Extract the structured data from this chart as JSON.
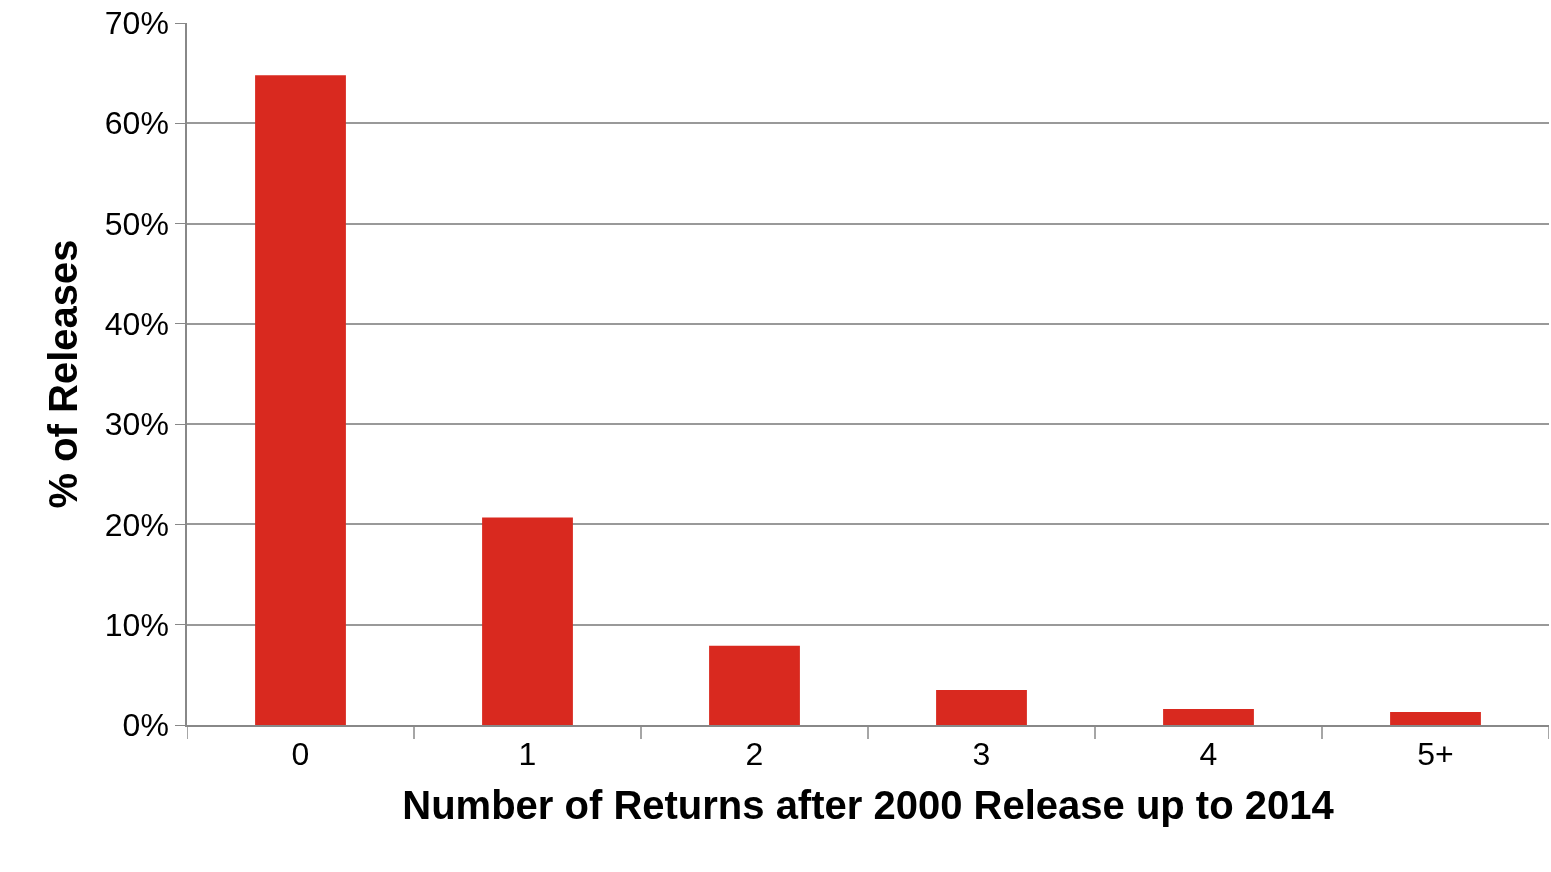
{
  "chart_data": {
    "type": "bar",
    "xlabel": "Number of Returns after 2000 Release up to 2014",
    "ylabel": "% of Releases",
    "categories": [
      "0",
      "1",
      "2",
      "3",
      "4",
      "5+"
    ],
    "values": [
      64.8,
      20.7,
      7.9,
      3.5,
      1.6,
      1.3
    ],
    "color": "#d9291f",
    "ylim": [
      0,
      70
    ],
    "yticks": [
      {
        "value": 0,
        "label": "0%"
      },
      {
        "value": 10,
        "label": "10%"
      },
      {
        "value": 20,
        "label": "20%"
      },
      {
        "value": 30,
        "label": "30%"
      },
      {
        "value": 40,
        "label": "40%"
      },
      {
        "value": 50,
        "label": "50%"
      },
      {
        "value": 60,
        "label": "60%"
      },
      {
        "value": 70,
        "label": "70%"
      }
    ],
    "grid": "y",
    "legend": false
  }
}
